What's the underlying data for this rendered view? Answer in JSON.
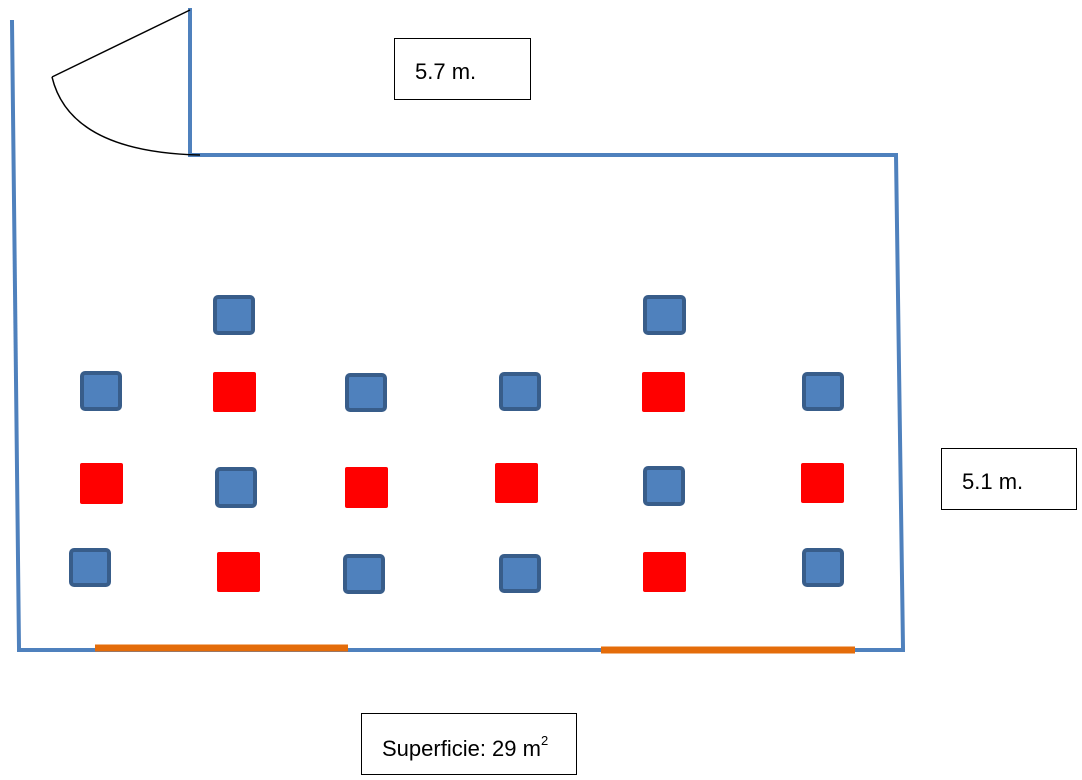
{
  "dimensions": {
    "width_label": "5.7 m.",
    "depth_label": "5.1 m."
  },
  "area": {
    "prefix": "Superficie: 29 m",
    "exponent": "2"
  },
  "colors": {
    "wall": "#4f81bd",
    "window": "#e46c0a",
    "door": "#000000",
    "seat_blue_fill": "#4f81bd",
    "seat_blue_border": "#385d8a",
    "seat_red": "#ff0000"
  },
  "layout_legend": {
    "seat_blue": "blue-square-item",
    "seat_red": "red-square-item"
  }
}
